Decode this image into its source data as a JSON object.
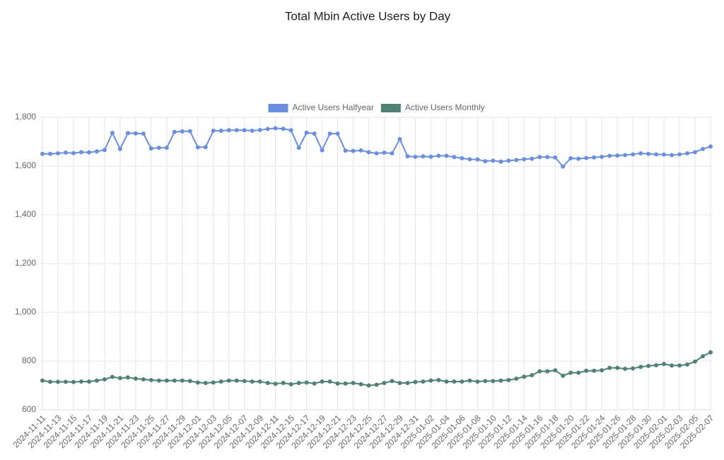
{
  "chart_data": {
    "type": "line",
    "title": "Total Mbin Active Users by Day",
    "categories": [
      "2024-11-11",
      null,
      "2024-11-13",
      null,
      "2024-11-15",
      null,
      "2024-11-17",
      null,
      "2024-11-19",
      null,
      "2024-11-21",
      null,
      "2024-11-23",
      null,
      "2024-11-25",
      null,
      "2024-11-27",
      null,
      "2024-11-29",
      null,
      "2024-12-01",
      null,
      "2024-12-03",
      null,
      "2024-12-05",
      null,
      "2024-12-07",
      null,
      "2024-12-09",
      null,
      "2024-12-11",
      null,
      "2024-12-15",
      null,
      "2024-12-17",
      null,
      "2024-12-19",
      null,
      "2024-12-21",
      null,
      "2024-12-23",
      null,
      "2024-12-25",
      null,
      "2024-12-27",
      null,
      "2024-12-29",
      null,
      "2024-12-31",
      null,
      "2025-01-02",
      null,
      "2025-01-04",
      null,
      "2025-01-06",
      null,
      "2025-01-08",
      null,
      "2025-01-10",
      null,
      "2025-01-12",
      null,
      "2025-01-14",
      null,
      "2025-01-16",
      null,
      "2025-01-18",
      null,
      "2025-01-20",
      null,
      "2025-01-22",
      null,
      "2025-01-24",
      null,
      "2025-01-26",
      null,
      "2025-01-28",
      null,
      "2025-01-30",
      null,
      "2025-02-01",
      null,
      "2025-02-03",
      null,
      "2025-02-05",
      null,
      "2025-02-07"
    ],
    "series": [
      {
        "name": "Active Users Halfyear",
        "color": "#6b8fdf",
        "values": [
          1650,
          1650,
          1652,
          1655,
          1653,
          1657,
          1656,
          1660,
          1666,
          1736,
          1670,
          1735,
          1734,
          1733,
          1672,
          1675,
          1675,
          1740,
          1742,
          1743,
          1677,
          1678,
          1745,
          1745,
          1747,
          1747,
          1747,
          1745,
          1748,
          1752,
          1755,
          1753,
          1747,
          1675,
          1737,
          1733,
          1665,
          1733,
          1733,
          1663,
          1662,
          1664,
          1657,
          1652,
          1655,
          1652,
          1710,
          1640,
          1638,
          1640,
          1638,
          1642,
          1642,
          1637,
          1632,
          1628,
          1627,
          1620,
          1622,
          1618,
          1622,
          1625,
          1628,
          1630,
          1637,
          1637,
          1635,
          1598,
          1632,
          1630,
          1633,
          1635,
          1638,
          1642,
          1643,
          1645,
          1648,
          1652,
          1650,
          1648,
          1647,
          1645,
          1648,
          1652,
          1657,
          1670,
          1680
        ]
      },
      {
        "name": "Active Users Monthly",
        "color": "#4f8275",
        "values": [
          720,
          715,
          715,
          715,
          714,
          716,
          716,
          720,
          725,
          735,
          730,
          733,
          728,
          725,
          722,
          720,
          720,
          720,
          720,
          718,
          712,
          710,
          712,
          716,
          720,
          720,
          718,
          716,
          716,
          710,
          707,
          710,
          705,
          710,
          712,
          708,
          716,
          716,
          708,
          708,
          710,
          705,
          700,
          703,
          710,
          718,
          710,
          710,
          714,
          716,
          720,
          722,
          716,
          716,
          716,
          720,
          716,
          718,
          718,
          720,
          722,
          728,
          736,
          742,
          758,
          758,
          762,
          740,
          752,
          752,
          760,
          760,
          762,
          772,
          772,
          768,
          770,
          776,
          780,
          783,
          788,
          782,
          782,
          786,
          798,
          820,
          836
        ]
      }
    ],
    "ylim": [
      600,
      1800
    ],
    "yticks": [
      600,
      800,
      {
        "value": 1000,
        "label": "1,000"
      },
      {
        "value": 1200,
        "label": "1,200"
      },
      {
        "value": 1400,
        "label": "1,400"
      },
      {
        "value": 1600,
        "label": "1,600"
      },
      {
        "value": 1800,
        "label": "1,800"
      }
    ],
    "grid": true,
    "legend": "top"
  }
}
